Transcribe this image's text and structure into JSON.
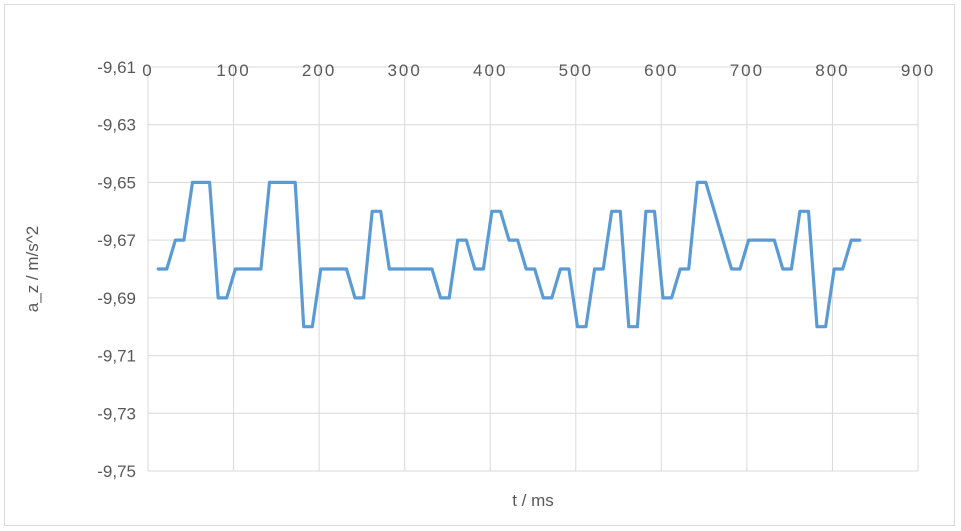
{
  "chart_data": {
    "type": "line",
    "xlabel": "t / ms",
    "ylabel": "a_z / m/s^2",
    "xlim": [
      0,
      900
    ],
    "ylim": [
      -9.75,
      -9.61
    ],
    "x_ticks": [
      {
        "value": 0,
        "label": "0"
      },
      {
        "value": 100,
        "label": "100"
      },
      {
        "value": 200,
        "label": "200"
      },
      {
        "value": 300,
        "label": "300"
      },
      {
        "value": 400,
        "label": "400"
      },
      {
        "value": 500,
        "label": "500"
      },
      {
        "value": 600,
        "label": "600"
      },
      {
        "value": 700,
        "label": "700"
      },
      {
        "value": 800,
        "label": "800"
      },
      {
        "value": 900,
        "label": "900"
      }
    ],
    "y_ticks": [
      {
        "value": -9.61,
        "label": "-9,61"
      },
      {
        "value": -9.63,
        "label": "-9,63"
      },
      {
        "value": -9.65,
        "label": "-9,65"
      },
      {
        "value": -9.67,
        "label": "-9,67"
      },
      {
        "value": -9.69,
        "label": "-9,69"
      },
      {
        "value": -9.71,
        "label": "-9,71"
      },
      {
        "value": -9.73,
        "label": "-9,73"
      },
      {
        "value": -9.75,
        "label": "-9,75"
      }
    ],
    "x_axis_position": "top",
    "grid": {
      "vertical": true,
      "horizontal": true
    },
    "legend": "none",
    "series": [
      {
        "color": "#5b9bd5",
        "x": [
          12,
          22,
          32,
          42,
          52,
          62,
          72,
          82,
          92,
          102,
          112,
          122,
          132,
          142,
          152,
          162,
          172,
          182,
          192,
          202,
          212,
          222,
          232,
          242,
          252,
          262,
          272,
          282,
          292,
          302,
          312,
          322,
          332,
          342,
          352,
          362,
          372,
          382,
          392,
          402,
          412,
          422,
          432,
          442,
          452,
          462,
          472,
          482,
          492,
          502,
          512,
          522,
          532,
          542,
          552,
          562,
          572,
          582,
          592,
          602,
          612,
          622,
          632,
          642,
          652,
          662,
          672,
          682,
          692,
          702,
          712,
          722,
          732,
          742,
          752,
          762,
          772,
          782,
          792,
          802,
          812,
          822,
          832
        ],
        "y": [
          -9.68,
          -9.68,
          -9.67,
          -9.67,
          -9.65,
          -9.65,
          -9.65,
          -9.69,
          -9.69,
          -9.68,
          -9.68,
          -9.68,
          -9.68,
          -9.65,
          -9.65,
          -9.65,
          -9.65,
          -9.7,
          -9.7,
          -9.68,
          -9.68,
          -9.68,
          -9.68,
          -9.69,
          -9.69,
          -9.66,
          -9.66,
          -9.68,
          -9.68,
          -9.68,
          -9.68,
          -9.68,
          -9.68,
          -9.69,
          -9.69,
          -9.67,
          -9.67,
          -9.68,
          -9.68,
          -9.66,
          -9.66,
          -9.67,
          -9.67,
          -9.68,
          -9.68,
          -9.69,
          -9.69,
          -9.68,
          -9.68,
          -9.7,
          -9.7,
          -9.68,
          -9.68,
          -9.66,
          -9.66,
          -9.7,
          -9.7,
          -9.66,
          -9.66,
          -9.69,
          -9.69,
          -9.68,
          -9.68,
          -9.65,
          -9.65,
          -9.66,
          -9.67,
          -9.68,
          -9.68,
          -9.67,
          -9.67,
          -9.67,
          -9.67,
          -9.68,
          -9.68,
          -9.66,
          -9.66,
          -9.7,
          -9.7,
          -9.68,
          -9.68,
          -9.67,
          -9.67
        ]
      }
    ]
  }
}
